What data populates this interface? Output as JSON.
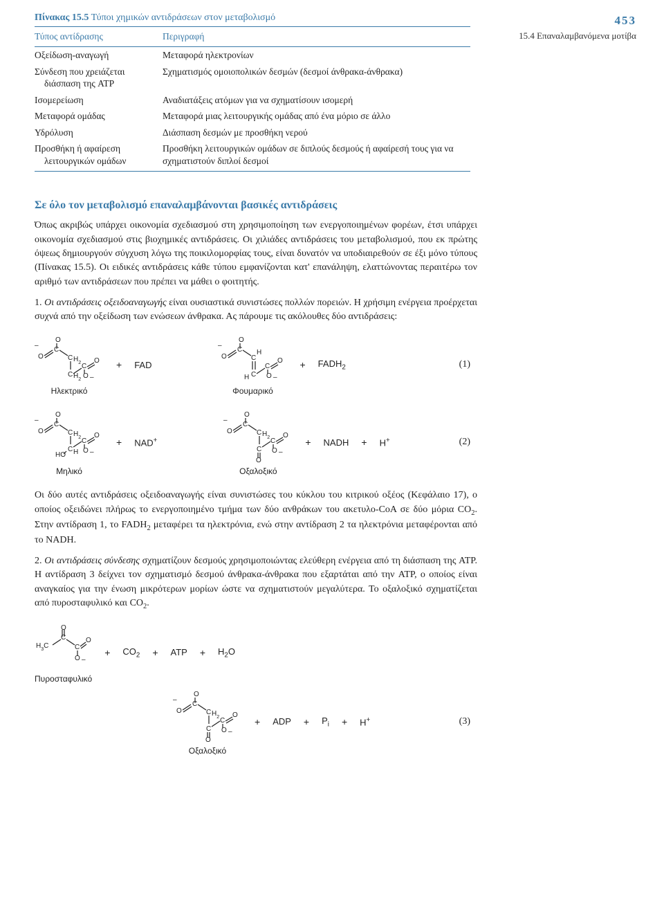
{
  "page_number": "453",
  "section_label": "15.4 Επαναλαμβανόμενα μοτίβα",
  "table": {
    "caption_bold": "Πίνακας 15.5",
    "caption_rest": "Τύποι χημικών αντιδράσεων στον μεταβολισμό",
    "header1": "Τύπος αντίδρασης",
    "header2": "Περιγραφή",
    "rows": [
      {
        "c1": "Οξείδωση-αναγωγή",
        "c1b": "",
        "c2": "Μεταφορά ηλεκτρονίων"
      },
      {
        "c1": "Σύνδεση που χρειάζεται",
        "c1b": "διάσπαση της ATP",
        "c2": "Σχηματισμός ομοιοπολικών δεσμών (δεσμοί άνθρακα-άνθρακα)"
      },
      {
        "c1": "Ισομερείωση",
        "c1b": "",
        "c2": "Αναδιατάξεις ατόμων για να σχηματίσουν ισομερή"
      },
      {
        "c1": "Μεταφορά ομάδας",
        "c1b": "",
        "c2": "Μεταφορά μιας λειτουργικής ομάδας από ένα μόριο σε άλλο"
      },
      {
        "c1": "Υδρόλυση",
        "c1b": "",
        "c2": "Διάσπαση δεσμών με προσθήκη νερού"
      },
      {
        "c1": "Προσθήκη ή αφαίρεση",
        "c1b": "λειτουργικών ομάδων",
        "c2": "Προσθήκη λειτουργικών ομάδων σε διπλούς δεσμούς ή αφαίρεσή τους για να σχηματιστούν διπλοί δεσμοί"
      }
    ]
  },
  "section_title": "Σε όλο τον μεταβολισμό επαναλαμβάνονται βασικές αντιδράσεις",
  "para1": "Όπως ακριβώς υπάρχει οικονομία σχεδιασμού στη χρησιμοποίηση των ενεργοποιημένων φορέων, έτσι υπάρχει οικονομία σχεδιασμού στις βιοχημικές αντιδράσεις. Οι χιλιάδες αντιδράσεις του μεταβολισμού, που εκ πρώτης όψεως δημιουργούν σύγχυση λόγω της ποικιλομορφίας τους, είναι δυνατόν να υποδιαιρεθούν σε έξι μόνο τύπους (Πίνακας 15.5). Οι ειδικές αντιδράσεις κάθε τύπου εμφανίζονται κατ' επανάληψη, ελαττώνοντας περαιτέρω τον αριθμό των αντιδράσεων που πρέπει να μάθει ο φοιτητής.",
  "item1_lead": "1. ",
  "item1_ital": "Οι αντιδράσεις οξειδοαναγωγής",
  "item1_rest": " είναι ουσιαστικά συνιστώσες πολλών πορειών. Η χρήσιμη ενέργεια προέρχεται συχνά από την οξείδωση των ενώσεων άνθρακα. Ας πάρουμε τις ακόλουθες δύο αντιδράσεις:",
  "rxn1": {
    "mol1_label": "Ηλεκτρικό",
    "reagent1": "FAD",
    "mol2_label": "Φουμαρικό",
    "product1": "FADH",
    "product1_sub": "2",
    "eq": "(1)"
  },
  "rxn2": {
    "mol1_label": "Μηλικό",
    "reagent1": "NAD",
    "reagent1_sup": "+",
    "mol2_label": "Οξαλοξικό",
    "product1": "NADH",
    "product2": "H",
    "product2_sup": "+",
    "eq": "(2)"
  },
  "para2": "Οι δύο αυτές αντιδράσεις οξειδοαναγωγής είναι συνιστώσες του κύκλου του κιτρικού οξέος (Κεφάλαιο 17), ο οποίος οξειδώνει πλήρως το ενεργοποιημένο τμήμα των δύο ανθράκων του ακετυλο-CoA σε δύο μόρια CO",
  "para2_sub": "2",
  "para2_rest": ". Στην αντίδραση 1, το FADH",
  "para2_sub2": "2",
  "para2_rest2": " μεταφέρει τα ηλεκτρόνια, ενώ στην αντίδραση 2 τα ηλεκτρόνια μεταφέρονται από το NADH.",
  "item2_lead": "2. ",
  "item2_ital": "Οι αντιδράσεις σύνδεσης",
  "item2_rest": " σχηματίζουν δεσμούς χρησιμοποιώντας ελεύθερη ενέργεια από τη διάσπαση της ATP. Η αντίδραση 3 δείχνει τον σχηματισμό δεσμού άνθρακα-άνθρακα που εξαρτάται από την ATP, ο οποίος είναι αναγκαίος για την ένωση μικρότερων μορίων ώστε να σχηματιστούν μεγαλύτερα. Το οξαλοξικό σχηματίζεται από πυροσταφυλικό και CO",
  "item2_sub": "2",
  "item2_rest2": ".",
  "rxn3": {
    "mol1_label": "Πυροσταφυλικό",
    "r1": "CO",
    "r1_sub": "2",
    "r2": "ATP",
    "r3": "H",
    "r3_sub": "2",
    "r3_rest": "O",
    "mol2_label": "Οξαλοξικό",
    "p1": "ADP",
    "p2": "P",
    "p2_sub": "i",
    "p3": "H",
    "p3_sup": "+",
    "eq": "(3)"
  }
}
